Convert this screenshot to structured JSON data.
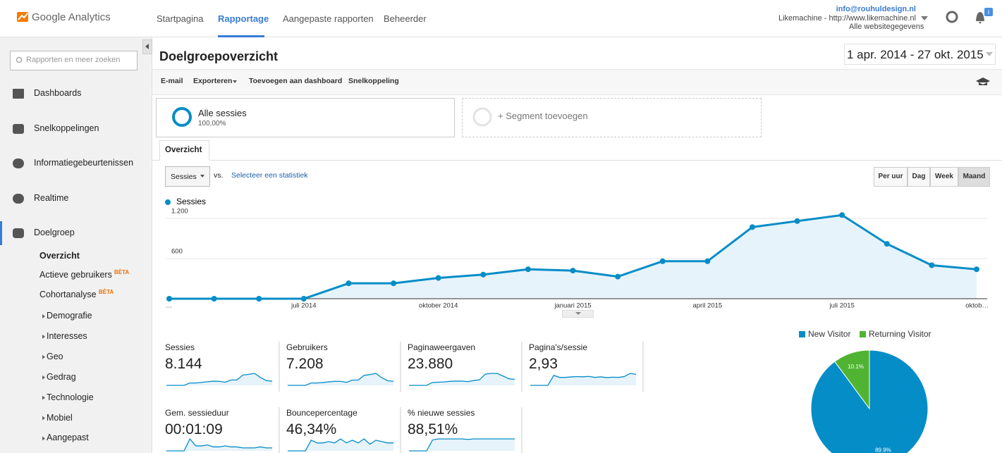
{
  "header": {
    "logo": "Google Analytics",
    "nav": [
      "Startpagina",
      "Rapportage",
      "Aangepaste rapporten",
      "Beheerder"
    ],
    "active_nav": 1,
    "account": {
      "email": "info@rouhuldesign.nl",
      "property": "Likemachine - http://www.likemachine.nl",
      "view": "Alle websitegegevens"
    },
    "notifications": "i"
  },
  "sidebar": {
    "search": "Rapporten en meer zoeken",
    "items": [
      "Dashboards",
      "Snelkoppelingen",
      "Informatiegebeurtenissen",
      "Realtime",
      "Doelgroep"
    ],
    "active_item": 4,
    "subitems": [
      {
        "label": "Overzicht"
      },
      {
        "label": "Actieve gebruikers",
        "badge": "BÈTA"
      },
      {
        "label": "Cohortanalyse",
        "badge": "BÈTA"
      }
    ],
    "subgroups": [
      "Demografie",
      "Interesses",
      "Geo",
      "Gedrag",
      "Technologie",
      "Mobiel",
      "Aangepast"
    ]
  },
  "page": {
    "title": "Doelgroepoverzicht",
    "date_range": "1 apr. 2014 - 27 okt. 2015",
    "toolbar": [
      "E-mail",
      "Exporteren",
      "Toevoegen aan dashboard",
      "Snelkoppeling"
    ],
    "segments": [
      {
        "name": "Alle sessies",
        "share": "100,00%"
      },
      {
        "name": "+ Segment toevoegen"
      }
    ],
    "tab": "Overzicht",
    "metric_select": "Sessies",
    "vs": "vs.",
    "select_stat": "Selecteer een statistiek",
    "granularity": [
      "Per uur",
      "Dag",
      "Week",
      "Maand"
    ],
    "active_granularity": 3
  },
  "chart_data": [
    {
      "type": "line",
      "categories": [
        "…",
        null,
        null,
        "juli 2014",
        null,
        null,
        "oktober 2014",
        null,
        null,
        "januari 2015",
        null,
        null,
        "april 2015",
        null,
        null,
        "juli 2015",
        null,
        null,
        "oktob…"
      ],
      "series": [
        {
          "name": "Sessies",
          "color": "#058dc7",
          "values": [
            0,
            0,
            0,
            0,
            230,
            230,
            310,
            360,
            440,
            420,
            330,
            560,
            560,
            1070,
            1160,
            1250,
            820,
            500,
            440
          ]
        }
      ],
      "ylim": [
        0,
        1300
      ],
      "yticks": [
        600,
        {
          "value": 1200,
          "label": "1.200"
        }
      ],
      "grid": true
    },
    {
      "type": "pie",
      "categories": [
        "New Visitor",
        "Returning Visitor"
      ],
      "values": [
        89.9,
        10.1
      ],
      "value_labels": [
        "89.9%",
        "10.1%"
      ],
      "colors": [
        "#058dc7",
        "#50b432"
      ]
    }
  ],
  "metrics": [
    {
      "label": "Sessies",
      "value": "8.144",
      "sparkline": [
        0,
        0,
        0,
        0,
        2,
        2,
        2.5,
        3,
        3.5,
        3.4,
        2.6,
        4.5,
        4.5,
        8.6,
        9.2,
        10,
        6.6,
        4,
        3.5
      ]
    },
    {
      "label": "Gebruikers",
      "value": "7.208",
      "sparkline": [
        0,
        0,
        0,
        0,
        2,
        2,
        2.4,
        2.9,
        3.4,
        3.3,
        2.5,
        4.4,
        4.4,
        8.4,
        9,
        10,
        6.4,
        3.9,
        3.4
      ]
    },
    {
      "label": "Paginaweergaven",
      "value": "23.880",
      "sparkline": [
        0,
        0,
        0,
        0,
        2.2,
        2.4,
        2.6,
        3,
        3.2,
        3.2,
        2.8,
        3.6,
        4.2,
        8.5,
        9,
        9,
        7,
        5,
        4.5
      ]
    },
    {
      "label": "Pagina's/sessie",
      "value": "2,93",
      "sparkline": [
        0,
        0,
        0,
        0,
        10,
        8,
        8,
        8.5,
        8.8,
        8.6,
        9,
        8,
        8.5,
        7.8,
        8.2,
        8,
        8.8,
        12,
        11
      ]
    },
    {
      "label": "Gem. sessieduur",
      "value": "00:01:09",
      "sparkline": [
        0,
        0,
        0,
        0,
        12,
        5,
        5,
        6,
        4,
        4,
        5,
        4,
        4,
        3,
        3,
        3,
        4,
        3,
        3
      ]
    },
    {
      "label": "Bouncepercentage",
      "value": "46,34%",
      "sparkline": [
        0,
        0,
        0,
        0,
        8,
        6,
        6,
        7,
        6,
        9,
        6,
        8,
        6,
        9,
        5,
        8,
        7,
        6,
        6
      ]
    },
    {
      "label": "% nieuwe sessies",
      "value": "88,51%",
      "sparkline": [
        0,
        0,
        0,
        0,
        10,
        11,
        11,
        11,
        11,
        11,
        10.5,
        11,
        11,
        11,
        11,
        11,
        11,
        11,
        11
      ]
    }
  ]
}
